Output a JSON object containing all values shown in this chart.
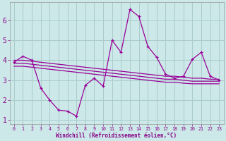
{
  "xlabel": "Windchill (Refroidissement éolien,°C)",
  "background_color": "#cce8e8",
  "grid_color": "#aacccc",
  "line_color": "#990099",
  "x_hours": [
    0,
    1,
    2,
    3,
    4,
    5,
    6,
    7,
    8,
    9,
    10,
    11,
    12,
    13,
    14,
    15,
    16,
    17,
    18,
    19,
    20,
    21,
    22,
    23
  ],
  "y_main": [
    3.9,
    4.2,
    4.0,
    2.6,
    2.0,
    1.5,
    1.45,
    1.2,
    2.75,
    3.1,
    2.7,
    5.0,
    4.4,
    6.55,
    6.2,
    4.7,
    4.15,
    3.3,
    3.1,
    3.2,
    4.05,
    4.4,
    3.2,
    3.0
  ],
  "y_trend1": [
    4.0,
    4.0,
    3.95,
    3.9,
    3.85,
    3.8,
    3.75,
    3.7,
    3.65,
    3.6,
    3.55,
    3.5,
    3.45,
    3.4,
    3.35,
    3.3,
    3.25,
    3.2,
    3.2,
    3.15,
    3.1,
    3.1,
    3.05,
    3.05
  ],
  "y_trend2": [
    3.85,
    3.85,
    3.8,
    3.75,
    3.7,
    3.65,
    3.6,
    3.55,
    3.5,
    3.45,
    3.4,
    3.35,
    3.3,
    3.25,
    3.2,
    3.15,
    3.1,
    3.05,
    3.05,
    3.0,
    2.95,
    2.95,
    2.95,
    2.95
  ],
  "y_trend3": [
    3.7,
    3.7,
    3.65,
    3.6,
    3.55,
    3.5,
    3.45,
    3.4,
    3.35,
    3.3,
    3.25,
    3.2,
    3.15,
    3.1,
    3.05,
    3.0,
    2.95,
    2.9,
    2.9,
    2.85,
    2.82,
    2.82,
    2.82,
    2.82
  ],
  "ylim": [
    0.8,
    6.9
  ],
  "yticks": [
    1,
    2,
    3,
    4,
    5,
    6
  ],
  "xlim": [
    -0.5,
    23.5
  ]
}
